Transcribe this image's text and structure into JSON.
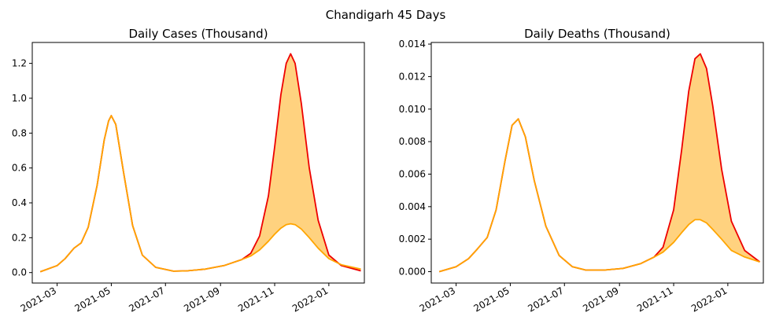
{
  "suptitle": "Chandigarh 45 Days",
  "colors": {
    "upper": "#ee0000",
    "lower": "#ffa500",
    "fill": "#ffd27f"
  },
  "chart_data": [
    {
      "type": "area",
      "title": "Daily Cases (Thousand)",
      "xlabel": "",
      "ylabel": "",
      "x_range": [
        "2021-02-01",
        "2022-02-10"
      ],
      "ylim": [
        -0.06,
        1.32
      ],
      "x_ticks": [
        "2021-03-01",
        "2021-05-01",
        "2021-07-01",
        "2021-09-01",
        "2021-11-01",
        "2022-01-01"
      ],
      "x_tick_labels": [
        "2021-03",
        "2021-05",
        "2021-07",
        "2021-09",
        "2021-11",
        "2022-01"
      ],
      "y_ticks": [
        0.0,
        0.2,
        0.4,
        0.6,
        0.8,
        1.0,
        1.2
      ],
      "y_tick_labels": [
        "0.0",
        "0.2",
        "0.4",
        "0.6",
        "0.8",
        "1.0",
        "1.2"
      ],
      "grid": false,
      "legend": "none",
      "x": [
        "2021-02-10",
        "2021-03-01",
        "2021-03-10",
        "2021-03-20",
        "2021-03-28",
        "2021-04-05",
        "2021-04-15",
        "2021-04-23",
        "2021-04-28",
        "2021-05-01",
        "2021-05-06",
        "2021-05-15",
        "2021-05-25",
        "2021-06-05",
        "2021-06-20",
        "2021-07-10",
        "2021-07-25",
        "2021-08-15",
        "2021-09-05",
        "2021-09-25",
        "2021-10-05",
        "2021-10-15",
        "2021-10-25",
        "2021-11-01",
        "2021-11-08",
        "2021-11-14",
        "2021-11-19",
        "2021-11-24",
        "2021-12-01",
        "2021-12-10",
        "2021-12-20",
        "2022-01-01",
        "2022-01-15",
        "2022-02-06"
      ],
      "series": [
        {
          "values": [
            0.005,
            0.04,
            0.08,
            0.14,
            0.17,
            0.26,
            0.5,
            0.76,
            0.87,
            0.9,
            0.85,
            0.57,
            0.27,
            0.1,
            0.03,
            0.008,
            0.01,
            0.02,
            0.04,
            0.075,
            0.11,
            0.21,
            0.44,
            0.72,
            1.02,
            1.2,
            1.255,
            1.2,
            0.97,
            0.6,
            0.3,
            0.1,
            0.04,
            0.01
          ]
        },
        {
          "values": [
            0.005,
            0.04,
            0.08,
            0.14,
            0.17,
            0.26,
            0.5,
            0.76,
            0.87,
            0.9,
            0.85,
            0.57,
            0.27,
            0.1,
            0.03,
            0.008,
            0.01,
            0.02,
            0.04,
            0.075,
            0.095,
            0.13,
            0.18,
            0.22,
            0.255,
            0.275,
            0.28,
            0.275,
            0.25,
            0.2,
            0.14,
            0.08,
            0.045,
            0.02
          ]
        }
      ]
    },
    {
      "type": "area",
      "title": "Daily Deaths (Thousand)",
      "xlabel": "",
      "ylabel": "",
      "x_range": [
        "2021-02-01",
        "2022-02-10"
      ],
      "ylim": [
        -0.0007,
        0.0141
      ],
      "x_ticks": [
        "2021-03-01",
        "2021-05-01",
        "2021-07-01",
        "2021-09-01",
        "2021-11-01",
        "2022-01-01"
      ],
      "x_tick_labels": [
        "2021-03",
        "2021-05",
        "2021-07",
        "2021-09",
        "2021-11",
        "2022-01"
      ],
      "y_ticks": [
        0.0,
        0.002,
        0.004,
        0.006,
        0.008,
        0.01,
        0.012,
        0.014
      ],
      "y_tick_labels": [
        "0.000",
        "0.002",
        "0.004",
        "0.006",
        "0.008",
        "0.010",
        "0.012",
        "0.014"
      ],
      "grid": false,
      "legend": "none",
      "x": [
        "2021-02-10",
        "2021-03-01",
        "2021-03-15",
        "2021-03-25",
        "2021-04-05",
        "2021-04-15",
        "2021-04-25",
        "2021-05-03",
        "2021-05-10",
        "2021-05-18",
        "2021-05-28",
        "2021-06-10",
        "2021-06-25",
        "2021-07-10",
        "2021-07-25",
        "2021-08-15",
        "2021-09-05",
        "2021-09-25",
        "2021-10-10",
        "2021-10-20",
        "2021-11-01",
        "2021-11-10",
        "2021-11-18",
        "2021-11-25",
        "2021-12-01",
        "2021-12-08",
        "2021-12-15",
        "2021-12-25",
        "2022-01-05",
        "2022-01-20",
        "2022-02-06"
      ],
      "series": [
        {
          "values": [
            0.0,
            0.0003,
            0.0008,
            0.0014,
            0.0021,
            0.0038,
            0.0068,
            0.009,
            0.0094,
            0.0083,
            0.0056,
            0.0028,
            0.001,
            0.0003,
            0.0001,
            0.0001,
            0.0002,
            0.0005,
            0.0009,
            0.0015,
            0.0038,
            0.0075,
            0.0111,
            0.0131,
            0.0134,
            0.0125,
            0.0102,
            0.0063,
            0.0031,
            0.0013,
            0.0006
          ]
        },
        {
          "values": [
            0.0,
            0.0003,
            0.0008,
            0.0014,
            0.0021,
            0.0038,
            0.0068,
            0.009,
            0.0094,
            0.0083,
            0.0056,
            0.0028,
            0.001,
            0.0003,
            0.0001,
            0.0001,
            0.0002,
            0.0005,
            0.0009,
            0.0012,
            0.0018,
            0.0024,
            0.0029,
            0.0032,
            0.0032,
            0.003,
            0.0026,
            0.002,
            0.0013,
            0.0009,
            0.0006
          ]
        }
      ]
    }
  ]
}
